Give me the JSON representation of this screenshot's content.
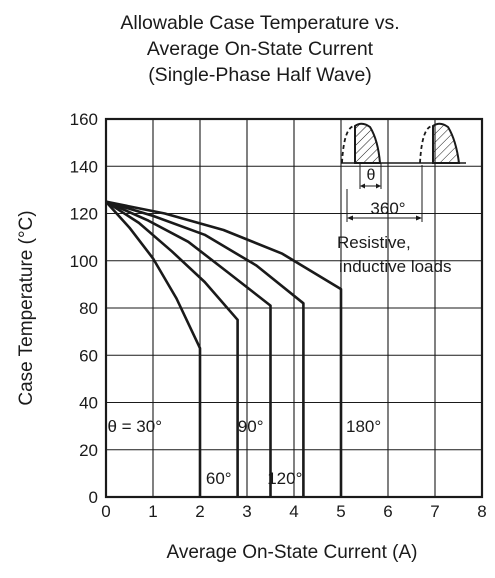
{
  "chart_data": {
    "type": "line",
    "title": [
      "Allowable Case Temperature vs.",
      "Average On-State Current",
      "(Single-Phase Half Wave)"
    ],
    "xlabel": "Average On-State Current  (A)",
    "ylabel": "Case Temperature  (°C)",
    "xlim": [
      0,
      8
    ],
    "ylim": [
      0,
      160
    ],
    "xticks": [
      0,
      1,
      2,
      3,
      4,
      5,
      6,
      7,
      8
    ],
    "yticks": [
      0,
      20,
      40,
      60,
      80,
      100,
      120,
      140,
      160
    ],
    "grid": true,
    "series": [
      {
        "label": "θ = 30°",
        "points": [
          [
            0,
            125
          ],
          [
            0.5,
            114
          ],
          [
            1,
            101
          ],
          [
            1.5,
            84
          ],
          [
            2,
            63
          ],
          [
            2,
            0
          ]
        ]
      },
      {
        "label": "60°",
        "points": [
          [
            0,
            125
          ],
          [
            0.7,
            116
          ],
          [
            1.4,
            104
          ],
          [
            2.1,
            91
          ],
          [
            2.8,
            75
          ],
          [
            2.8,
            0
          ]
        ]
      },
      {
        "label": "90°",
        "points": [
          [
            0,
            125
          ],
          [
            0.9,
            117
          ],
          [
            1.75,
            108
          ],
          [
            2.6,
            95
          ],
          [
            3.5,
            81
          ],
          [
            3.5,
            0
          ]
        ]
      },
      {
        "label": "120°",
        "points": [
          [
            0,
            125
          ],
          [
            1,
            119
          ],
          [
            2.1,
            111
          ],
          [
            3.2,
            98
          ],
          [
            4.2,
            82
          ],
          [
            4.2,
            0
          ]
        ]
      },
      {
        "label": "180°",
        "points": [
          [
            0,
            125
          ],
          [
            1.25,
            120
          ],
          [
            2.5,
            113
          ],
          [
            3.75,
            103
          ],
          [
            5,
            88
          ],
          [
            5,
            0
          ]
        ]
      }
    ],
    "annotations": {
      "theta_symbol": "θ",
      "period": "360°",
      "load_lines": [
        "Resistive,",
        "inductive loads"
      ]
    }
  }
}
